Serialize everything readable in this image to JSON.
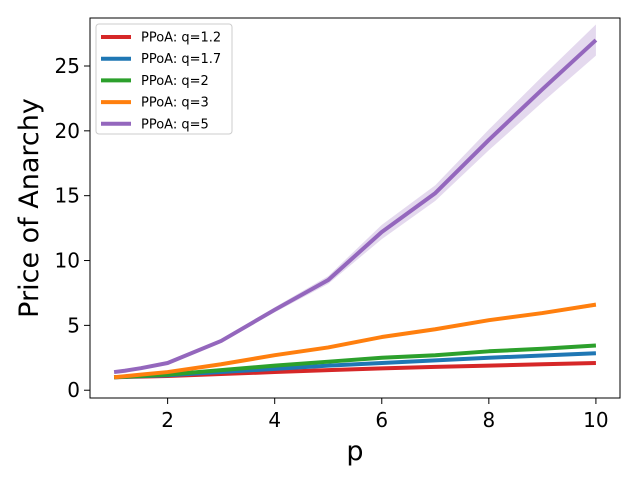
{
  "chart_data": {
    "type": "line",
    "title": "",
    "xlabel": "p",
    "ylabel": "Price of Anarchy",
    "xlim": [
      0.55,
      10.45
    ],
    "ylim": [
      -0.6,
      28.7
    ],
    "xticks": [
      2,
      4,
      6,
      8,
      10
    ],
    "yticks": [
      0,
      5,
      10,
      15,
      20,
      25
    ],
    "grid": false,
    "legend_position": "top-left",
    "x": [
      1.0,
      1.2,
      1.5,
      2,
      3,
      4,
      5,
      6,
      7,
      8,
      9,
      10
    ],
    "series": [
      {
        "name": "PPoA: q=1.2",
        "color": "#d62728",
        "values": [
          1.0,
          1.02,
          1.05,
          1.1,
          1.25,
          1.4,
          1.55,
          1.68,
          1.8,
          1.9,
          2.0,
          2.1
        ],
        "band": [
          0.0,
          0.0,
          0.0,
          0.0,
          0.02,
          0.02,
          0.03,
          0.03,
          0.03,
          0.04,
          0.04,
          0.05
        ]
      },
      {
        "name": "PPoA: q=1.7",
        "color": "#1f77b4",
        "values": [
          1.0,
          1.03,
          1.08,
          1.15,
          1.4,
          1.65,
          1.9,
          2.1,
          2.3,
          2.5,
          2.68,
          2.85
        ],
        "band": [
          0.0,
          0.0,
          0.0,
          0.01,
          0.02,
          0.03,
          0.03,
          0.04,
          0.04,
          0.05,
          0.05,
          0.06
        ]
      },
      {
        "name": "PPoA: q=2",
        "color": "#2ca02c",
        "values": [
          1.0,
          1.04,
          1.1,
          1.2,
          1.55,
          1.9,
          2.2,
          2.5,
          2.7,
          3.0,
          3.2,
          3.45
        ],
        "band": [
          0.0,
          0.0,
          0.01,
          0.01,
          0.02,
          0.03,
          0.04,
          0.04,
          0.05,
          0.05,
          0.06,
          0.07
        ]
      },
      {
        "name": "PPoA: q=3",
        "color": "#ff7f0e",
        "values": [
          1.0,
          1.08,
          1.2,
          1.4,
          2.0,
          2.7,
          3.3,
          4.1,
          4.7,
          5.4,
          5.95,
          6.6
        ],
        "band": [
          0.0,
          0.01,
          0.01,
          0.02,
          0.04,
          0.05,
          0.06,
          0.08,
          0.09,
          0.1,
          0.12,
          0.15
        ]
      },
      {
        "name": "PPoA: q=5",
        "color": "#9467bd",
        "values": [
          1.4,
          1.5,
          1.7,
          2.1,
          3.8,
          6.2,
          8.5,
          12.2,
          15.2,
          19.3,
          23.2,
          27.0
        ],
        "band": [
          0.05,
          0.05,
          0.06,
          0.08,
          0.12,
          0.2,
          0.3,
          0.55,
          0.6,
          0.8,
          1.0,
          1.2
        ]
      }
    ]
  }
}
